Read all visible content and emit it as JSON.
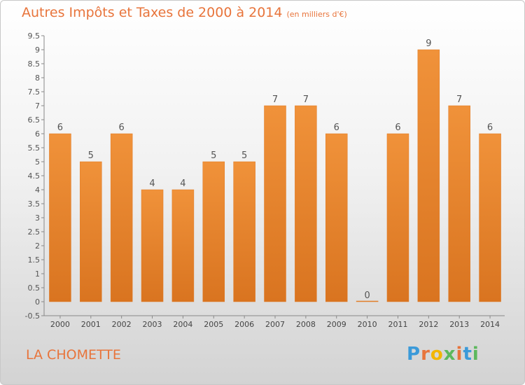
{
  "chart_data": {
    "type": "bar",
    "title": "Autres Impôts et Taxes de 2000 à 2014",
    "unit_note": "(en milliers d'€)",
    "categories": [
      "2000",
      "2001",
      "2002",
      "2003",
      "2004",
      "2005",
      "2006",
      "2007",
      "2008",
      "2009",
      "2010",
      "2011",
      "2012",
      "2013",
      "2014"
    ],
    "values": [
      6,
      5,
      6,
      4,
      4,
      5,
      5,
      7,
      7,
      6,
      0,
      6,
      9,
      7,
      6
    ],
    "ylim": [
      -0.5,
      9.5
    ],
    "yticks": [
      "9.5",
      "9",
      "8.5",
      "8",
      "7.5",
      "7",
      "6.5",
      "6",
      "5.5",
      "5",
      "4.5",
      "4",
      "3.5",
      "3",
      "2.5",
      "2",
      "1.5",
      "1",
      "0.5",
      "0",
      "-0.5"
    ],
    "grid": false,
    "bar_color": "#f0923a",
    "bar_color_dark": "#d97420"
  },
  "place_name": "LA CHOMETTE",
  "logo": {
    "letters": [
      "P",
      "r",
      "o",
      "x",
      "i",
      "t",
      "i"
    ],
    "colors": [
      "#3b9ad9",
      "#e8743b",
      "#f2b600",
      "#5cb85c",
      "#e8743b",
      "#3b9ad9",
      "#5cb85c"
    ]
  }
}
